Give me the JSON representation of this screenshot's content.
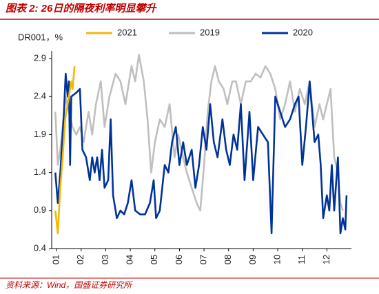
{
  "chart_data": {
    "type": "line",
    "title": "图表 2:  26日的隔夜利率明显攀升",
    "y_label": "DR001，%",
    "source": "资料来源：Wind，国盛证券研究所",
    "xlim": [
      0.8,
      13.0
    ],
    "xticks": [
      {
        "value": 1,
        "label": "01"
      },
      {
        "value": 2,
        "label": "02"
      },
      {
        "value": 3,
        "label": "03"
      },
      {
        "value": 4,
        "label": "04"
      },
      {
        "value": 5,
        "label": "05"
      },
      {
        "value": 6,
        "label": "06"
      },
      {
        "value": 7,
        "label": "07"
      },
      {
        "value": 8,
        "label": "08"
      },
      {
        "value": 9,
        "label": "09"
      },
      {
        "value": 10,
        "label": "10"
      },
      {
        "value": 11,
        "label": "11"
      },
      {
        "value": 12,
        "label": "12"
      }
    ],
    "ylim": [
      0.4,
      3.0
    ],
    "yticks": [
      0.4,
      0.9,
      1.4,
      1.9,
      2.4,
      2.9
    ],
    "series": [
      {
        "name": "2021",
        "color": "#f5b800",
        "x": [
          0.95,
          1.05,
          1.15,
          1.25,
          1.35,
          1.45,
          1.55,
          1.6,
          1.65,
          1.73
        ],
        "values": [
          0.9,
          0.6,
          1.2,
          1.6,
          2.1,
          2.3,
          2.5,
          2.6,
          2.5,
          2.8
        ]
      },
      {
        "name": "2019",
        "color": "#bfbfbf",
        "x": [
          0.95,
          1.05,
          1.15,
          1.25,
          1.37,
          1.5,
          1.65,
          1.8,
          1.95,
          2.1,
          2.3,
          2.45,
          2.6,
          2.8,
          2.95,
          3.15,
          3.4,
          3.6,
          3.8,
          4.05,
          4.2,
          4.35,
          4.55,
          4.7,
          4.85,
          5.0,
          5.2,
          5.4,
          5.6,
          5.8,
          5.95,
          6.15,
          6.3,
          6.5,
          6.7,
          6.85,
          7.0,
          7.15,
          7.3,
          7.45,
          7.6,
          7.8,
          7.95,
          8.15,
          8.3,
          8.5,
          8.7,
          8.9,
          9.1,
          9.3,
          9.5,
          9.7,
          9.9,
          10.1,
          10.3,
          10.5,
          10.7,
          10.9,
          11.1,
          11.3,
          11.5,
          11.7,
          11.85,
          12.0,
          12.15,
          12.3,
          12.45,
          12.55,
          12.65
        ],
        "values": [
          2.2,
          1.5,
          1.7,
          2.0,
          2.4,
          2.2,
          2.0,
          1.9,
          2.0,
          1.8,
          2.2,
          1.9,
          2.3,
          2.6,
          2.0,
          2.4,
          2.7,
          2.6,
          2.3,
          2.8,
          2.6,
          2.95,
          2.6,
          2.1,
          1.4,
          1.8,
          2.1,
          2.0,
          2.3,
          1.6,
          1.9,
          1.6,
          1.4,
          1.2,
          1.0,
          0.9,
          1.5,
          2.2,
          2.6,
          2.8,
          2.6,
          2.5,
          2.3,
          2.6,
          2.6,
          2.3,
          2.6,
          2.6,
          2.7,
          2.65,
          2.8,
          2.7,
          2.5,
          2.1,
          2.3,
          2.6,
          2.2,
          2.5,
          2.3,
          2.6,
          2.0,
          2.3,
          2.1,
          2.3,
          2.5,
          1.6,
          1.4,
          1.0,
          0.9
        ]
      },
      {
        "name": "2020",
        "color": "#003399",
        "x": [
          0.95,
          1.05,
          1.15,
          1.3,
          1.37,
          1.45,
          1.5,
          1.55,
          1.6,
          1.8,
          1.95,
          2.05,
          2.2,
          2.35,
          2.45,
          2.55,
          2.65,
          2.75,
          2.85,
          2.95,
          3.1,
          3.2,
          3.3,
          3.45,
          3.6,
          3.75,
          3.9,
          4.05,
          4.2,
          4.4,
          4.6,
          4.8,
          4.95,
          5.05,
          5.2,
          5.4,
          5.55,
          5.7,
          5.85,
          6.0,
          6.15,
          6.3,
          6.5,
          6.65,
          6.8,
          6.95,
          7.1,
          7.25,
          7.4,
          7.55,
          7.75,
          7.9,
          8.05,
          8.2,
          8.35,
          8.5,
          8.65,
          8.85,
          9.0,
          9.2,
          9.4,
          9.6,
          9.75,
          9.9,
          10.1,
          10.3,
          10.5,
          10.7,
          10.85,
          11.0,
          11.15,
          11.3,
          11.5,
          11.65,
          11.75,
          11.85,
          12.0,
          12.1,
          12.2,
          12.3,
          12.45,
          12.55,
          12.65,
          12.75,
          12.8
        ],
        "values": [
          1.4,
          1.0,
          1.4,
          2.2,
          2.7,
          2.4,
          2.6,
          1.5,
          2.4,
          2.45,
          2.5,
          1.7,
          1.6,
          1.3,
          1.6,
          1.4,
          1.6,
          1.3,
          1.7,
          1.2,
          1.3,
          2.1,
          1.1,
          0.8,
          0.9,
          0.85,
          1.0,
          1.3,
          0.9,
          0.85,
          0.85,
          1.0,
          1.3,
          0.8,
          0.9,
          1.5,
          1.4,
          1.8,
          2.0,
          1.5,
          1.8,
          1.5,
          1.7,
          1.2,
          1.5,
          2.0,
          1.7,
          2.3,
          1.8,
          1.6,
          2.1,
          1.7,
          1.5,
          1.9,
          1.7,
          2.3,
          1.3,
          2.2,
          1.3,
          2.0,
          1.9,
          1.8,
          0.6,
          2.4,
          2.2,
          2.0,
          2.1,
          2.3,
          2.4,
          1.5,
          2.0,
          2.6,
          1.8,
          1.9,
          1.5,
          0.8,
          1.1,
          0.9,
          1.5,
          0.9,
          1.6,
          0.6,
          0.8,
          0.65,
          1.1
        ]
      }
    ]
  }
}
